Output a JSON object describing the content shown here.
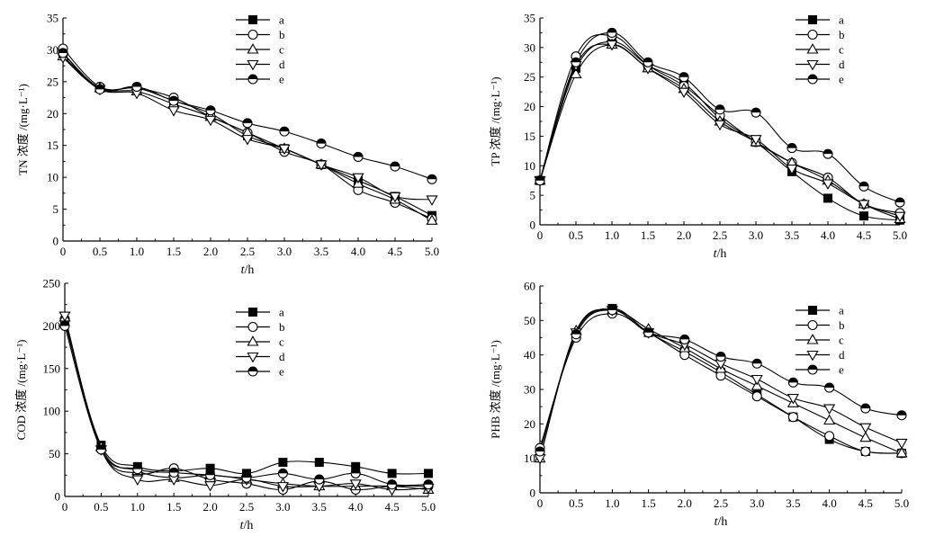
{
  "chart_data": [
    {
      "type": "line",
      "ylabel": "TN 浓度 /(mg·L⁻¹)",
      "xlabel_var": "t",
      "xlabel_unit": "/h",
      "xlim": [
        0,
        5.0
      ],
      "ylim": [
        0,
        35
      ],
      "xticks": [
        "0",
        "0.5",
        "1.0",
        "1.5",
        "2.0",
        "2.5",
        "3.0",
        "3.5",
        "4.0",
        "4.5",
        "5.0"
      ],
      "yticks": [
        "0",
        "5",
        "10",
        "15",
        "20",
        "25",
        "30",
        "35"
      ],
      "x": [
        0,
        0.5,
        1.0,
        1.5,
        2.0,
        2.5,
        3.0,
        3.5,
        4.0,
        4.5,
        5.0
      ],
      "series": [
        {
          "name": "a",
          "marker": "square",
          "values": [
            29.5,
            24.0,
            24.0,
            22.0,
            20.0,
            16.5,
            14.5,
            12.0,
            9.5,
            7.0,
            4.0
          ]
        },
        {
          "name": "b",
          "marker": "circle",
          "values": [
            30.2,
            24.2,
            24.0,
            22.5,
            19.5,
            17.0,
            14.0,
            12.0,
            8.0,
            6.0,
            3.5
          ]
        },
        {
          "name": "c",
          "marker": "triangle",
          "values": [
            29.0,
            24.0,
            23.5,
            21.5,
            19.5,
            17.0,
            14.5,
            12.0,
            9.0,
            6.5,
            3.2
          ]
        },
        {
          "name": "d",
          "marker": "triangle-down",
          "values": [
            28.8,
            23.8,
            23.2,
            20.5,
            19.0,
            16.0,
            14.5,
            12.0,
            10.0,
            7.0,
            6.5
          ]
        },
        {
          "name": "e",
          "marker": "half-circle",
          "values": [
            29.5,
            23.8,
            24.2,
            22.0,
            20.5,
            18.5,
            17.2,
            15.3,
            13.2,
            11.7,
            9.7
          ]
        }
      ]
    },
    {
      "type": "line",
      "ylabel": "TP 浓度 /(mg·L⁻¹)",
      "xlabel_var": "t",
      "xlabel_unit": "/h",
      "xlim": [
        0,
        5.0
      ],
      "ylim": [
        0,
        35
      ],
      "xticks": [
        "0",
        "0.5",
        "1.0",
        "1.5",
        "2.0",
        "2.5",
        "3.0",
        "3.5",
        "4.0",
        "4.5",
        "5.0"
      ],
      "yticks": [
        "0",
        "5",
        "10",
        "15",
        "20",
        "25",
        "30",
        "35"
      ],
      "x": [
        0,
        0.5,
        1.0,
        1.5,
        2.0,
        2.5,
        3.0,
        3.5,
        4.0,
        4.5,
        5.0
      ],
      "series": [
        {
          "name": "a",
          "marker": "square",
          "values": [
            7.5,
            26.5,
            31.0,
            27.0,
            24.0,
            18.0,
            14.0,
            9.0,
            4.5,
            1.5,
            0.8
          ]
        },
        {
          "name": "b",
          "marker": "circle",
          "values": [
            7.5,
            28.5,
            32.0,
            27.0,
            23.5,
            18.5,
            14.0,
            10.5,
            8.0,
            3.5,
            2.0
          ]
        },
        {
          "name": "c",
          "marker": "triangle",
          "values": [
            7.5,
            25.5,
            30.5,
            26.5,
            23.0,
            17.5,
            14.0,
            10.5,
            7.5,
            3.5,
            1.0
          ]
        },
        {
          "name": "d",
          "marker": "triangle-down",
          "values": [
            7.5,
            27.0,
            30.5,
            26.5,
            22.5,
            17.0,
            14.5,
            9.5,
            7.0,
            3.5,
            1.5
          ]
        },
        {
          "name": "e",
          "marker": "half-circle",
          "values": [
            7.5,
            27.5,
            32.5,
            27.5,
            25.0,
            19.5,
            19.0,
            13.0,
            12.0,
            6.5,
            3.8
          ]
        }
      ]
    },
    {
      "type": "line",
      "ylabel": "COD 浓度 /(mg·L⁻¹)",
      "xlabel_var": "t",
      "xlabel_unit": "/h",
      "xlim": [
        0,
        5.0
      ],
      "ylim": [
        0,
        250
      ],
      "xticks": [
        "0",
        "0.5",
        "1.0",
        "1.5",
        "2.0",
        "2.5",
        "3.0",
        "3.5",
        "4.0",
        "4.5",
        "5.0"
      ],
      "yticks": [
        "0",
        "50",
        "100",
        "150",
        "200",
        "250"
      ],
      "x": [
        0,
        0.5,
        1.0,
        1.5,
        2.0,
        2.5,
        3.0,
        3.5,
        4.0,
        4.5,
        5.0
      ],
      "series": [
        {
          "name": "a",
          "marker": "square",
          "values": [
            205,
            60,
            35,
            30,
            33,
            27,
            40,
            40,
            35,
            27,
            27
          ]
        },
        {
          "name": "b",
          "marker": "circle",
          "values": [
            208,
            55,
            27,
            33,
            20,
            15,
            8,
            18,
            8,
            12,
            12
          ]
        },
        {
          "name": "c",
          "marker": "triangle",
          "values": [
            210,
            58,
            30,
            22,
            25,
            20,
            15,
            12,
            12,
            12,
            8
          ]
        },
        {
          "name": "d",
          "marker": "triangle-down",
          "values": [
            212,
            55,
            20,
            20,
            13,
            20,
            12,
            12,
            15,
            8,
            10
          ]
        },
        {
          "name": "e",
          "marker": "half-circle",
          "values": [
            200,
            55,
            32,
            28,
            25,
            22,
            27,
            20,
            27,
            14,
            14
          ]
        }
      ]
    },
    {
      "type": "line",
      "ylabel": "PHB 浓度 /(mg·L⁻¹)",
      "xlabel_var": "t",
      "xlabel_unit": "/h",
      "xlim": [
        0,
        5.0
      ],
      "ylim": [
        0,
        60
      ],
      "xticks": [
        "0",
        "0.5",
        "1.0",
        "1.5",
        "2.0",
        "2.5",
        "3.0",
        "3.5",
        "4.0",
        "4.5",
        "5.0"
      ],
      "yticks": [
        "0",
        "10",
        "20",
        "30",
        "40",
        "50",
        "60"
      ],
      "x": [
        0,
        0.5,
        1.0,
        1.5,
        2.0,
        2.5,
        3.0,
        3.5,
        4.0,
        4.5,
        5.0
      ],
      "series": [
        {
          "name": "a",
          "marker": "square",
          "values": [
            12,
            46,
            53.5,
            46.5,
            41,
            35,
            28.5,
            22,
            15.5,
            12,
            11.5
          ]
        },
        {
          "name": "b",
          "marker": "circle",
          "values": [
            13,
            45,
            52,
            46.5,
            40,
            34,
            28,
            22,
            16.5,
            12,
            11.5
          ]
        },
        {
          "name": "c",
          "marker": "triangle",
          "values": [
            10,
            47,
            53,
            47.5,
            42,
            36,
            31,
            26,
            21,
            16,
            11.5
          ]
        },
        {
          "name": "d",
          "marker": "triangle-down",
          "values": [
            10,
            46.5,
            53,
            46.5,
            43,
            37.5,
            33,
            27.5,
            24.5,
            19,
            14.5
          ]
        },
        {
          "name": "e",
          "marker": "half-circle",
          "values": [
            12,
            46,
            53,
            46.5,
            44.5,
            39.5,
            37.5,
            32,
            30.5,
            24.5,
            22.5
          ]
        }
      ]
    }
  ]
}
